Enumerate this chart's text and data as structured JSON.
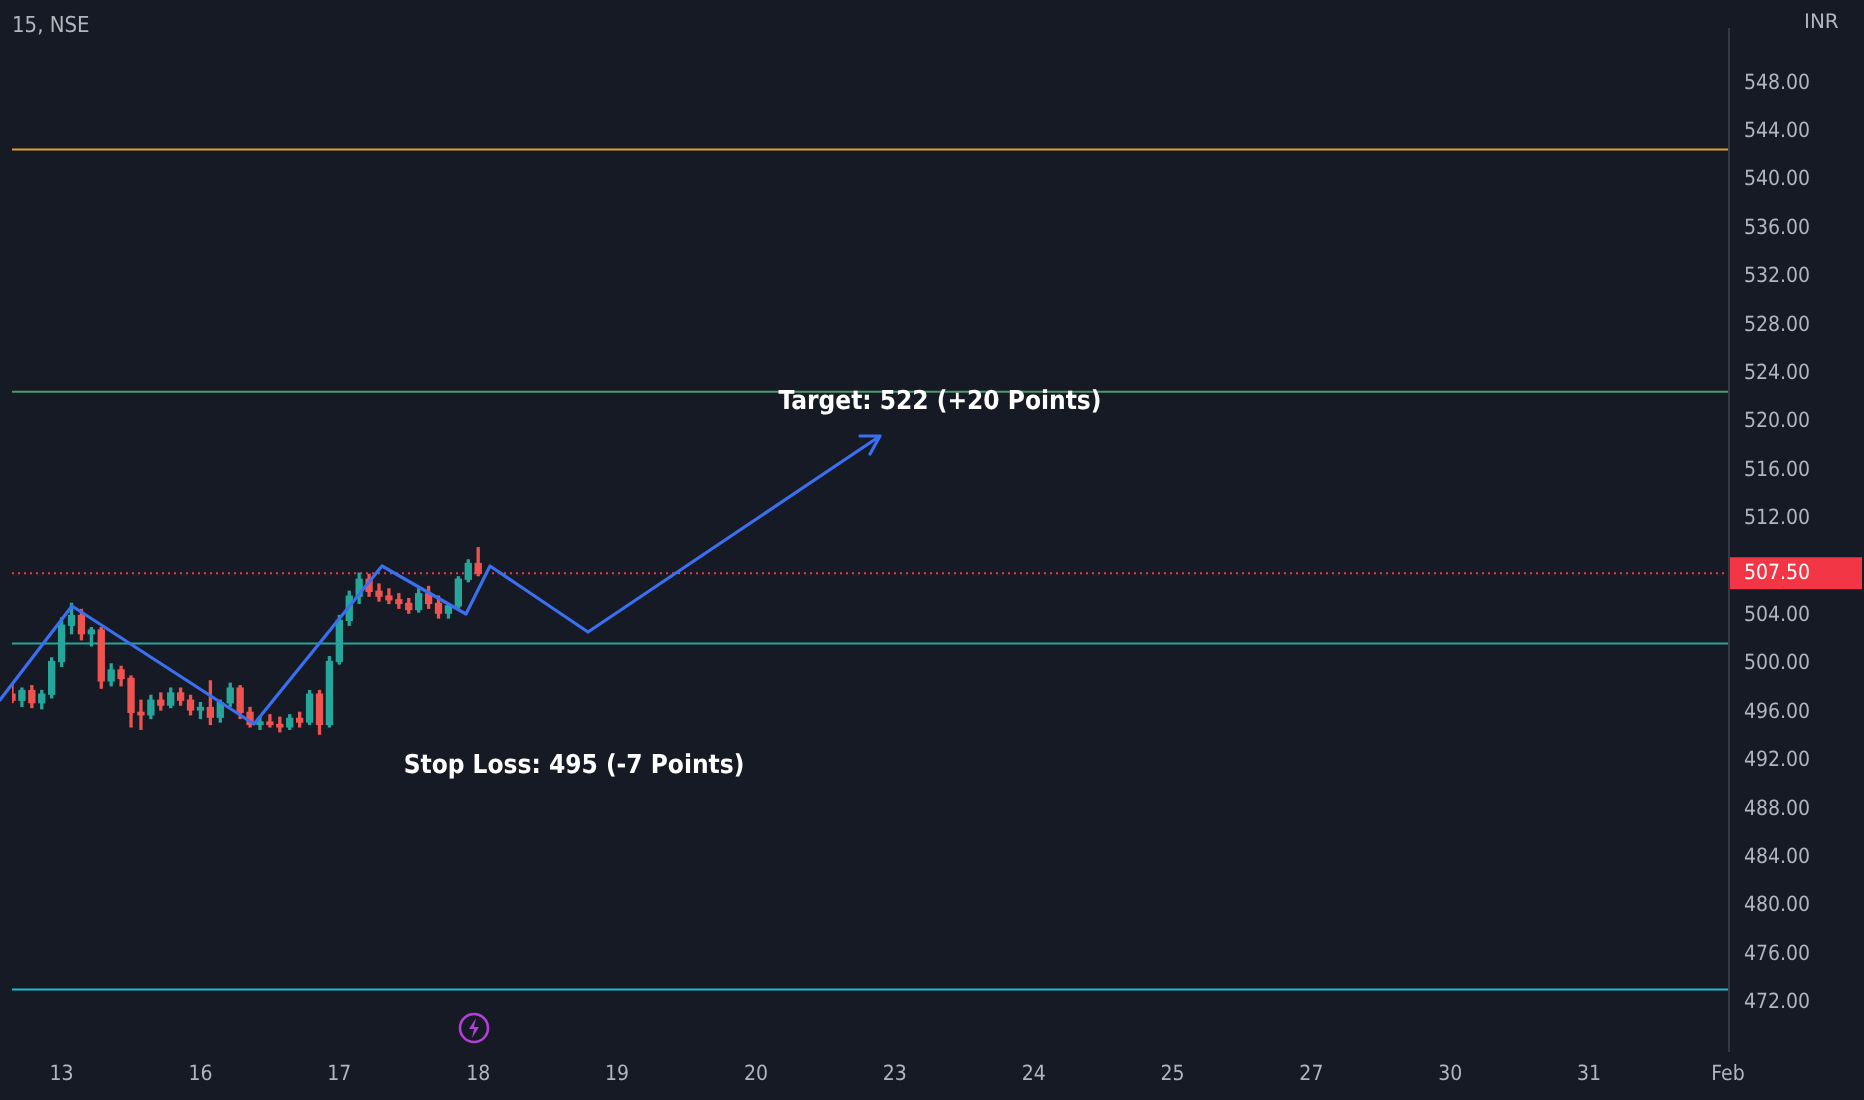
{
  "chart_data": {
    "type": "candlestick",
    "title": "15, NSE",
    "ylabel": "INR",
    "categories": [
      null,
      null,
      null,
      null,
      null,
      "13",
      null,
      null,
      null,
      null,
      null,
      null,
      null,
      null,
      null,
      null,
      null,
      null,
      null,
      "16",
      null,
      null,
      null,
      null,
      null,
      null,
      null,
      null,
      null,
      null,
      null,
      null,
      null,
      "17",
      null,
      null,
      null,
      null,
      null,
      null,
      null,
      null,
      null,
      null,
      null,
      null,
      null,
      "18",
      null,
      null,
      null,
      null,
      null,
      null,
      null,
      null,
      null,
      null,
      null,
      null,
      null,
      "19",
      null,
      null,
      null,
      null,
      null,
      null,
      null,
      null,
      null,
      null,
      null,
      null,
      null,
      "20",
      null,
      null,
      null,
      null,
      null,
      null,
      null,
      null,
      null,
      null,
      null,
      null,
      null,
      "23",
      null,
      null,
      null,
      null,
      null,
      null,
      null,
      null,
      null,
      null,
      null,
      null,
      null,
      "24",
      null,
      null,
      null,
      null,
      null,
      null,
      null,
      null,
      null,
      null,
      null,
      null,
      null,
      "25",
      null,
      null,
      null,
      null,
      null,
      null,
      null,
      null,
      null,
      null,
      null,
      null,
      null,
      "27",
      null,
      null,
      null,
      null,
      null,
      null,
      null,
      null,
      null,
      null,
      null,
      null,
      null,
      "30",
      null,
      null,
      null,
      null,
      null,
      null,
      null,
      null,
      null,
      null,
      null,
      null,
      null,
      "31",
      null,
      null,
      null,
      null,
      null,
      null,
      null,
      null,
      null,
      null,
      null,
      null,
      null,
      "Feb"
    ],
    "ohlc": [
      [
        497.5,
        498.5,
        496.8,
        497.0
      ],
      [
        497.0,
        498.0,
        496.5,
        497.8
      ],
      [
        497.8,
        498.2,
        496.4,
        496.8
      ],
      [
        496.8,
        497.8,
        496.3,
        497.5
      ],
      [
        497.5,
        500.5,
        497.2,
        500.2
      ],
      [
        500.2,
        503.8,
        499.8,
        503.2
      ],
      [
        503.2,
        505.0,
        502.5,
        504.0
      ],
      [
        504.0,
        504.5,
        502.0,
        502.5
      ],
      [
        502.5,
        503.0,
        501.5,
        502.8
      ],
      [
        502.8,
        503.0,
        498.0,
        498.6
      ],
      [
        498.6,
        500.0,
        498.2,
        499.5
      ],
      [
        499.5,
        499.8,
        498.2,
        498.8
      ],
      [
        498.8,
        499.0,
        494.8,
        496.0
      ],
      [
        496.0,
        497.0,
        494.6,
        495.8
      ],
      [
        495.8,
        497.4,
        495.5,
        497.0
      ],
      [
        497.0,
        497.6,
        496.2,
        496.6
      ],
      [
        496.6,
        498.0,
        496.4,
        497.6
      ],
      [
        497.6,
        498.0,
        496.6,
        497.0
      ],
      [
        497.0,
        497.4,
        495.8,
        496.2
      ],
      [
        496.2,
        496.8,
        495.5,
        496.4
      ],
      [
        496.4,
        498.6,
        495.0,
        495.6
      ],
      [
        495.6,
        497.0,
        495.2,
        496.8
      ],
      [
        496.8,
        498.4,
        496.5,
        498.0
      ],
      [
        498.0,
        498.2,
        495.5,
        496.0
      ],
      [
        496.0,
        496.4,
        494.8,
        495.0
      ],
      [
        495.0,
        495.6,
        494.6,
        495.2
      ],
      [
        495.2,
        495.8,
        494.8,
        495.0
      ],
      [
        495.0,
        495.6,
        494.4,
        494.8
      ],
      [
        494.8,
        495.8,
        494.6,
        495.5
      ],
      [
        495.5,
        496.0,
        494.8,
        495.2
      ],
      [
        495.2,
        497.8,
        495.0,
        497.5
      ],
      [
        497.5,
        497.8,
        494.2,
        495.0
      ],
      [
        495.0,
        500.6,
        494.8,
        500.2
      ],
      [
        500.2,
        504.0,
        500.0,
        503.6
      ],
      [
        503.6,
        506.0,
        503.2,
        505.6
      ],
      [
        505.6,
        507.5,
        505.0,
        507.0
      ],
      [
        507.0,
        507.4,
        505.6,
        506.0
      ],
      [
        506.0,
        506.6,
        505.2,
        505.6
      ],
      [
        505.6,
        506.2,
        505.0,
        505.3
      ],
      [
        505.3,
        505.8,
        504.6,
        505.0
      ],
      [
        505.0,
        505.4,
        504.2,
        504.5
      ],
      [
        504.5,
        506.2,
        504.3,
        505.8
      ],
      [
        505.8,
        506.4,
        504.6,
        505.0
      ],
      [
        505.0,
        505.6,
        503.8,
        504.2
      ],
      [
        504.2,
        505.0,
        503.8,
        504.8
      ],
      [
        504.8,
        507.2,
        504.6,
        507.0
      ],
      [
        507.0,
        508.6,
        506.8,
        508.3
      ],
      [
        508.3,
        509.6,
        507.3,
        507.5
      ],
      null,
      null,
      null,
      null,
      null,
      null,
      null,
      null,
      null,
      null,
      null,
      null,
      null,
      null,
      null,
      null,
      null,
      null,
      null,
      null,
      null,
      null,
      null,
      null,
      null,
      null,
      null,
      null,
      null,
      null,
      null,
      null,
      null,
      null,
      null,
      null,
      null,
      null,
      null,
      null,
      null,
      null,
      null,
      null,
      null,
      null,
      null,
      null,
      null,
      null,
      null,
      null,
      null,
      null,
      null,
      null,
      null,
      null,
      null,
      null,
      null,
      null,
      null,
      null,
      null,
      null,
      null,
      null,
      null,
      null,
      null,
      null,
      null,
      null,
      null,
      null,
      null,
      null,
      null,
      null,
      null,
      null,
      null,
      null,
      null,
      null,
      null,
      null,
      null,
      null,
      null,
      null,
      null,
      null,
      null,
      null,
      null,
      null,
      null,
      null,
      null,
      null,
      null,
      null,
      null,
      null,
      null,
      null,
      null,
      null,
      null,
      null,
      null,
      null,
      null,
      null,
      null,
      null,
      null,
      null,
      null,
      null,
      null,
      null,
      null,
      null
    ],
    "colors": [
      "#ef5350",
      "#26a69a",
      "#ef5350",
      "#26a69a",
      "#26a69a",
      "#26a69a",
      "#26a69a",
      "#ef5350",
      "#26a69a",
      "#ef5350",
      "#26a69a",
      "#ef5350",
      "#ef5350",
      "#ef5350",
      "#26a69a",
      "#ef5350",
      "#26a69a",
      "#ef5350",
      "#ef5350",
      "#26a69a",
      "#ef5350",
      "#26a69a",
      "#26a69a",
      "#ef5350",
      "#ef5350",
      "#26a69a",
      "#ef5350",
      "#ef5350",
      "#26a69a",
      "#ef5350",
      "#26a69a",
      "#ef5350",
      "#26a69a",
      "#26a69a",
      "#26a69a",
      "#26a69a",
      "#ef5350",
      "#ef5350",
      "#ef5350",
      "#ef5350",
      "#ef5350",
      "#26a69a",
      "#ef5350",
      "#ef5350",
      "#26a69a",
      "#26a69a",
      "#26a69a",
      "#ef5350",
      null,
      null,
      null,
      null,
      null,
      null,
      null,
      null,
      null,
      null,
      null,
      null,
      null,
      null,
      null,
      null,
      null,
      null,
      null,
      null,
      null,
      null,
      null,
      null,
      null,
      null,
      null,
      null,
      null,
      null,
      null,
      null,
      null,
      null,
      null,
      null,
      null,
      null,
      null,
      null,
      null,
      null,
      null,
      null,
      null,
      null,
      null,
      null,
      null,
      null,
      null,
      null,
      null,
      null,
      null,
      null,
      null,
      null,
      null,
      null,
      null,
      null,
      null,
      null,
      null,
      null,
      null,
      null,
      null,
      null,
      null,
      null,
      null,
      null,
      null,
      null,
      null,
      null,
      null,
      null,
      null,
      null,
      null,
      null,
      null,
      null,
      null,
      null,
      null,
      null,
      null,
      null,
      null,
      null,
      null,
      null,
      null,
      null,
      null,
      null,
      null,
      null,
      null,
      null,
      null,
      null,
      null,
      null,
      null,
      null,
      null,
      null,
      null,
      null,
      null,
      null,
      null,
      null,
      null,
      null,
      null,
      null,
      null,
      null,
      null,
      null
    ],
    "ylim": [
      468.1,
      552.5
    ],
    "yticks": [
      {
        "value": 472,
        "label": "472.00"
      },
      {
        "value": 476,
        "label": "476.00"
      },
      {
        "value": 480,
        "label": "480.00"
      },
      {
        "value": 484,
        "label": "484.00"
      },
      {
        "value": 488,
        "label": "488.00"
      },
      {
        "value": 492,
        "label": "492.00"
      },
      {
        "value": 496,
        "label": "496.00"
      },
      {
        "value": 500,
        "label": "500.00"
      },
      {
        "value": 504,
        "label": "504.00"
      },
      {
        "value": 512,
        "label": "512.00"
      },
      {
        "value": 516,
        "label": "516.00"
      },
      {
        "value": 520,
        "label": "520.00"
      },
      {
        "value": 524,
        "label": "524.00"
      },
      {
        "value": 528,
        "label": "528.00"
      },
      {
        "value": 532,
        "label": "532.00"
      },
      {
        "value": 536,
        "label": "536.00"
      },
      {
        "value": 540,
        "label": "540.00"
      },
      {
        "value": 544,
        "label": "544.00"
      },
      {
        "value": 548,
        "label": "548.00"
      }
    ],
    "ref_lines": [
      {
        "axis": "y",
        "value": 542.5,
        "color": "#e0a030"
      },
      {
        "axis": "y",
        "value": 522.5,
        "color": "#4e9a6a"
      },
      {
        "axis": "y",
        "value": 507.5,
        "label": "507.50",
        "color": "#f23645",
        "line_style": "dotted"
      },
      {
        "axis": "y",
        "value": 501.7,
        "color": "#26a69a"
      },
      {
        "axis": "y",
        "value": 473.1,
        "color": "#22b8cf"
      }
    ],
    "annotations": [
      "Target: 522 (+20 Points)",
      "Stop Loss: 495 (-7 Points)"
    ],
    "grid": false,
    "legend": false
  }
}
